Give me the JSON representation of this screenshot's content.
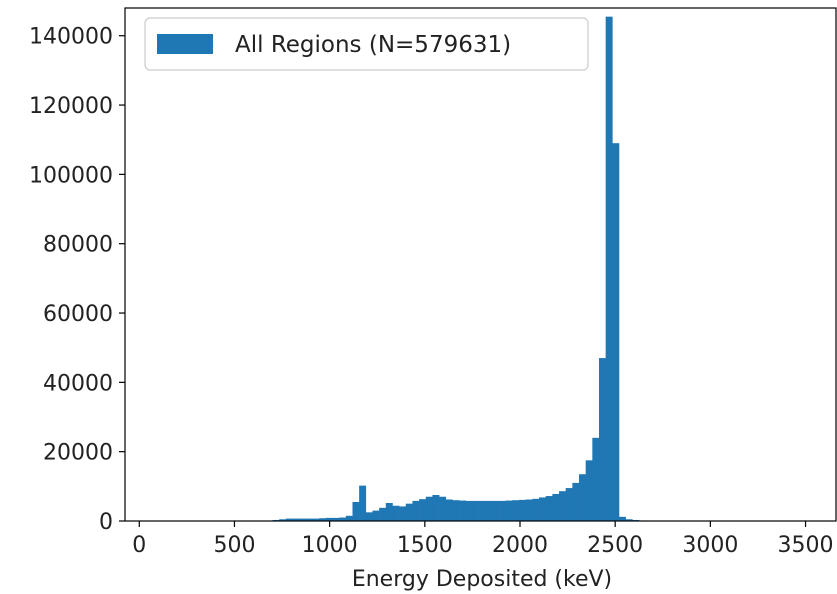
{
  "chart_data": {
    "type": "bar",
    "title": "",
    "xlabel": "Energy Deposited (keV)",
    "ylabel": "",
    "xlim": [
      -75,
      3660
    ],
    "ylim": [
      0,
      148000
    ],
    "bin_width": 35,
    "color": "#1f77b4",
    "grid": false,
    "legend": {
      "position": "top-left",
      "entries": [
        "All Regions (N=579631)"
      ]
    },
    "xticks": [
      0,
      500,
      1000,
      1500,
      2000,
      2500,
      3000,
      3500
    ],
    "yticks": [
      0,
      20000,
      40000,
      60000,
      80000,
      100000,
      120000,
      140000
    ],
    "xtick_labels": [
      "0",
      "500",
      "1000",
      "1500",
      "2000",
      "2500",
      "3000",
      "3500"
    ],
    "ytick_labels": [
      "0",
      "20000",
      "40000",
      "60000",
      "80000",
      "100000",
      "120000",
      "140000"
    ],
    "series": [
      {
        "name": "All Regions (N=579631)",
        "x": [
          700,
          735,
          770,
          805,
          840,
          875,
          910,
          945,
          980,
          1015,
          1050,
          1085,
          1120,
          1155,
          1190,
          1225,
          1260,
          1295,
          1330,
          1365,
          1400,
          1435,
          1470,
          1505,
          1540,
          1575,
          1610,
          1645,
          1680,
          1715,
          1750,
          1785,
          1820,
          1855,
          1890,
          1925,
          1960,
          1995,
          2030,
          2065,
          2100,
          2135,
          2170,
          2205,
          2240,
          2275,
          2310,
          2345,
          2380,
          2415,
          2450,
          2485,
          2520,
          2555,
          2590,
          2625
        ],
        "values": [
          300,
          500,
          700,
          700,
          700,
          700,
          700,
          800,
          900,
          900,
          1000,
          1500,
          5500,
          10200,
          2500,
          3000,
          3800,
          5200,
          4400,
          4200,
          5000,
          5800,
          6300,
          7000,
          7500,
          7000,
          6200,
          6000,
          5900,
          5800,
          5800,
          5800,
          5800,
          5800,
          5800,
          5900,
          6000,
          6100,
          6200,
          6400,
          6800,
          7200,
          7800,
          8600,
          9500,
          11000,
          13500,
          17500,
          24000,
          47000,
          145500,
          109000,
          1200,
          500,
          300,
          150
        ]
      }
    ]
  }
}
